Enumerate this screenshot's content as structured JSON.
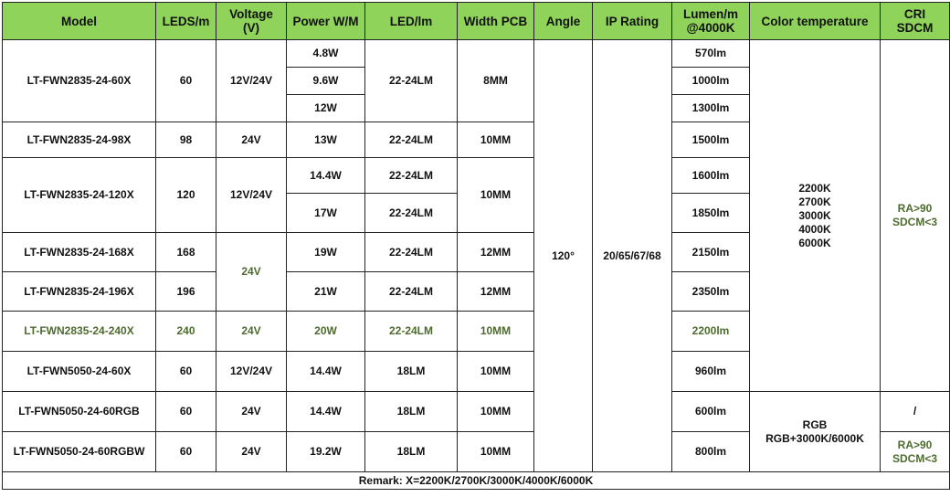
{
  "headers": {
    "model": "Model",
    "leds": "LEDS/m",
    "voltage": "Voltage\n(V)",
    "power": "Power W/M",
    "led_lm": "LED/lm",
    "width": "Width PCB",
    "angle": "Angle",
    "ip": "IP  Rating",
    "lumen": "Lumen/m\n@4000K",
    "cct": "Color  temperature",
    "cri": "CRI\nSDCM"
  },
  "shared": {
    "angle": "120°",
    "ip": "20/65/67/68",
    "cct_white": "2200K\n2700K\n3000K\n4000K\n6000K",
    "cct_rgb": "RGB\nRGB+3000K/6000K",
    "cri_white": "RA>90\nSDCM<3",
    "cri_rgb": "/",
    "cri_rgbw": "RA>90\nSDCM<3"
  },
  "rows": {
    "r60": {
      "model": "LT-FWN2835-24-60X",
      "leds": "60",
      "voltage": "12V/24V",
      "power": [
        "4.8W",
        "9.6W",
        "12W"
      ],
      "led_lm": "22-24LM",
      "width": "8MM",
      "lumen": [
        "570lm",
        "1000lm",
        "1300lm"
      ]
    },
    "r98": {
      "model": "LT-FWN2835-24-98X",
      "leds": "98",
      "voltage": "24V",
      "power": "13W",
      "led_lm": "22-24LM",
      "width": "10MM",
      "lumen": "1500lm"
    },
    "r120": {
      "model": "LT-FWN2835-24-120X",
      "leds": "120",
      "voltage": "12V/24V",
      "power": [
        "14.4W",
        "17W"
      ],
      "led_lm": [
        "22-24LM",
        "22-24LM"
      ],
      "width": "10MM",
      "lumen": [
        "1600lm",
        "1850lm"
      ]
    },
    "r168": {
      "model": "LT-FWN2835-24-168X",
      "leds": "168",
      "voltage": "24V",
      "power": "19W",
      "led_lm": "22-24LM",
      "width": "12MM",
      "lumen": "2150lm"
    },
    "r196": {
      "model": "LT-FWN2835-24-196X",
      "leds": "196",
      "power": "21W",
      "led_lm": "22-24LM",
      "width": "12MM",
      "lumen": "2350lm"
    },
    "r240": {
      "model": "LT-FWN2835-24-240X",
      "leds": "240",
      "voltage": "24V",
      "power": "20W",
      "led_lm": "22-24LM",
      "width": "10MM",
      "lumen": "2200lm"
    },
    "r5050": {
      "model": "LT-FWN5050-24-60X",
      "leds": "60",
      "voltage": "12V/24V",
      "power": "14.4W",
      "led_lm": "18LM",
      "width": "10MM",
      "lumen": "960lm"
    },
    "rgb": {
      "model": "LT-FWN5050-24-60RGB",
      "leds": "60",
      "voltage": "24V",
      "power": "14.4W",
      "led_lm": "18LM",
      "width": "10MM",
      "lumen": "600lm"
    },
    "rgbw": {
      "model": "LT-FWN5050-24-60RGBW",
      "leds": "60",
      "voltage": "24V",
      "power": "19.2W",
      "led_lm": "18LM",
      "width": "10MM",
      "lumen": "800lm"
    }
  },
  "remark": "Remark: X=2200K/2700K/3000K/4000K/6000K",
  "colors": {
    "header_bg": "#8fd35a",
    "muted_green_text": "#4e6b2f",
    "border": "#222222"
  }
}
